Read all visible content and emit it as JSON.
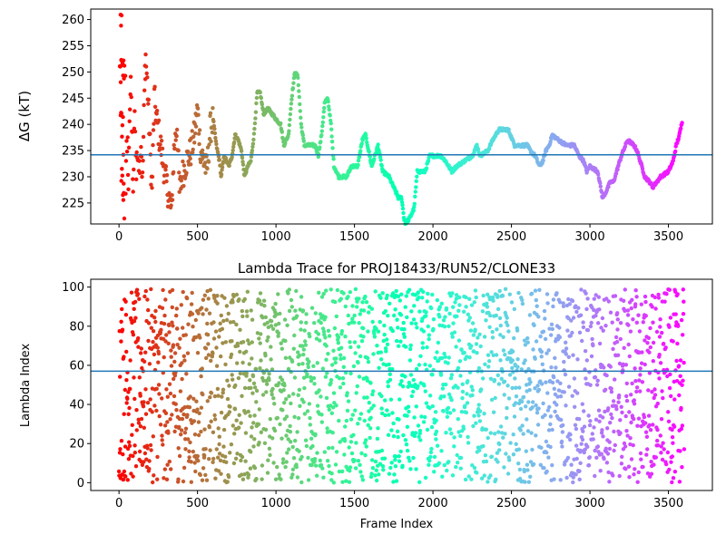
{
  "chart_data": [
    {
      "type": "scatter",
      "title": "",
      "xlabel": "",
      "ylabel": "ΔG (kT)",
      "xlim": [
        -180,
        3780
      ],
      "ylim": [
        221,
        262
      ],
      "xticks": [
        0,
        500,
        1000,
        1500,
        2000,
        2500,
        3000,
        3500
      ],
      "yticks": [
        225,
        230,
        235,
        240,
        245,
        250,
        255,
        260
      ],
      "hline": 234.2,
      "hline_color": "#1f77b4",
      "colormap": "rainbow (red at frame 0 to violet at frame 3600)",
      "grid": false,
      "legend": "none",
      "points": [
        [
          10,
          260
        ],
        [
          20,
          260
        ],
        [
          5,
          250
        ],
        [
          20,
          250
        ],
        [
          40,
          251
        ],
        [
          10,
          240
        ],
        [
          25,
          240
        ],
        [
          30,
          230
        ],
        [
          15,
          230
        ],
        [
          40,
          222
        ],
        [
          45,
          233
        ],
        [
          55,
          236
        ],
        [
          60,
          228
        ],
        [
          70,
          244
        ],
        [
          75,
          247
        ],
        [
          85,
          238
        ],
        [
          90,
          226
        ],
        [
          100,
          244
        ],
        [
          110,
          230
        ],
        [
          120,
          236
        ],
        [
          130,
          232
        ],
        [
          140,
          237
        ],
        [
          150,
          229
        ],
        [
          165,
          250
        ],
        [
          170,
          253
        ],
        [
          180,
          248
        ],
        [
          195,
          238
        ],
        [
          210,
          227
        ],
        [
          225,
          245
        ],
        [
          240,
          241
        ],
        [
          260,
          237
        ],
        [
          280,
          233
        ],
        [
          300,
          229
        ],
        [
          320,
          226
        ],
        [
          335,
          223
        ],
        [
          350,
          235
        ],
        [
          370,
          240
        ],
        [
          385,
          227
        ],
        [
          400,
          230
        ],
        [
          430,
          233
        ],
        [
          460,
          235
        ],
        [
          480,
          238
        ],
        [
          500,
          243
        ],
        [
          520,
          235
        ],
        [
          540,
          233
        ],
        [
          560,
          231
        ],
        [
          580,
          239
        ],
        [
          600,
          241
        ],
        [
          620,
          236
        ],
        [
          640,
          233
        ],
        [
          650,
          230
        ],
        [
          670,
          234
        ],
        [
          700,
          232
        ],
        [
          720,
          234
        ],
        [
          740,
          238
        ],
        [
          760,
          237
        ],
        [
          780,
          235
        ],
        [
          800,
          230
        ],
        [
          820,
          232
        ],
        [
          840,
          233
        ],
        [
          860,
          238
        ],
        [
          880,
          246
        ],
        [
          900,
          246
        ],
        [
          920,
          242
        ],
        [
          950,
          243
        ],
        [
          1000,
          241
        ],
        [
          1030,
          240
        ],
        [
          1050,
          236
        ],
        [
          1080,
          238
        ],
        [
          1100,
          245
        ],
        [
          1120,
          250
        ],
        [
          1140,
          249
        ],
        [
          1160,
          240
        ],
        [
          1180,
          236
        ],
        [
          1250,
          236
        ],
        [
          1270,
          234
        ],
        [
          1290,
          238
        ],
        [
          1310,
          244
        ],
        [
          1330,
          245
        ],
        [
          1350,
          240
        ],
        [
          1370,
          232
        ],
        [
          1400,
          230
        ],
        [
          1450,
          230
        ],
        [
          1480,
          232
        ],
        [
          1520,
          232
        ],
        [
          1550,
          237
        ],
        [
          1570,
          238
        ],
        [
          1590,
          235
        ],
        [
          1610,
          232
        ],
        [
          1650,
          236
        ],
        [
          1680,
          231
        ],
        [
          1720,
          230
        ],
        [
          1750,
          228
        ],
        [
          1780,
          226
        ],
        [
          1800,
          226
        ],
        [
          1820,
          221
        ],
        [
          1850,
          222
        ],
        [
          1880,
          224
        ],
        [
          1900,
          231
        ],
        [
          1950,
          231
        ],
        [
          1980,
          234
        ],
        [
          2050,
          234
        ],
        [
          2080,
          233
        ],
        [
          2120,
          231
        ],
        [
          2150,
          232
        ],
        [
          2200,
          233
        ],
        [
          2250,
          234
        ],
        [
          2280,
          236
        ],
        [
          2300,
          234
        ],
        [
          2350,
          235
        ],
        [
          2380,
          237
        ],
        [
          2420,
          239
        ],
        [
          2480,
          239
        ],
        [
          2520,
          236
        ],
        [
          2600,
          236
        ],
        [
          2620,
          235
        ],
        [
          2650,
          234
        ],
        [
          2680,
          232
        ],
        [
          2700,
          233
        ],
        [
          2720,
          235
        ],
        [
          2740,
          236
        ],
        [
          2760,
          238
        ],
        [
          2800,
          237
        ],
        [
          2850,
          236
        ],
        [
          2900,
          236
        ],
        [
          2930,
          234
        ],
        [
          2960,
          233
        ],
        [
          2980,
          231
        ],
        [
          3000,
          232
        ],
        [
          3050,
          231
        ],
        [
          3080,
          226
        ],
        [
          3100,
          227
        ],
        [
          3130,
          229
        ],
        [
          3150,
          229
        ],
        [
          3200,
          234
        ],
        [
          3240,
          237
        ],
        [
          3280,
          236
        ],
        [
          3300,
          235
        ],
        [
          3320,
          233
        ],
        [
          3350,
          230
        ],
        [
          3380,
          229
        ],
        [
          3400,
          228
        ],
        [
          3450,
          230
        ],
        [
          3500,
          231
        ],
        [
          3530,
          233
        ],
        [
          3550,
          236
        ],
        [
          3570,
          238
        ],
        [
          3590,
          241
        ]
      ]
    },
    {
      "type": "scatter",
      "title": "Lambda Trace for PROJ18433/RUN52/CLONE33",
      "xlabel": "Frame Index",
      "ylabel": "Lambda Index",
      "xlim": [
        -180,
        3780
      ],
      "ylim": [
        -4,
        104
      ],
      "xticks": [
        0,
        500,
        1000,
        1500,
        2000,
        2500,
        3000,
        3500
      ],
      "yticks": [
        0,
        20,
        40,
        60,
        80,
        100
      ],
      "hline": 57,
      "hline_color": "#1f77b4",
      "colormap": "rainbow (red at frame 0 to violet at frame 3600)",
      "grid": false,
      "legend": "none",
      "value_range": [
        0,
        99
      ],
      "frame_range": [
        0,
        3600
      ]
    }
  ]
}
